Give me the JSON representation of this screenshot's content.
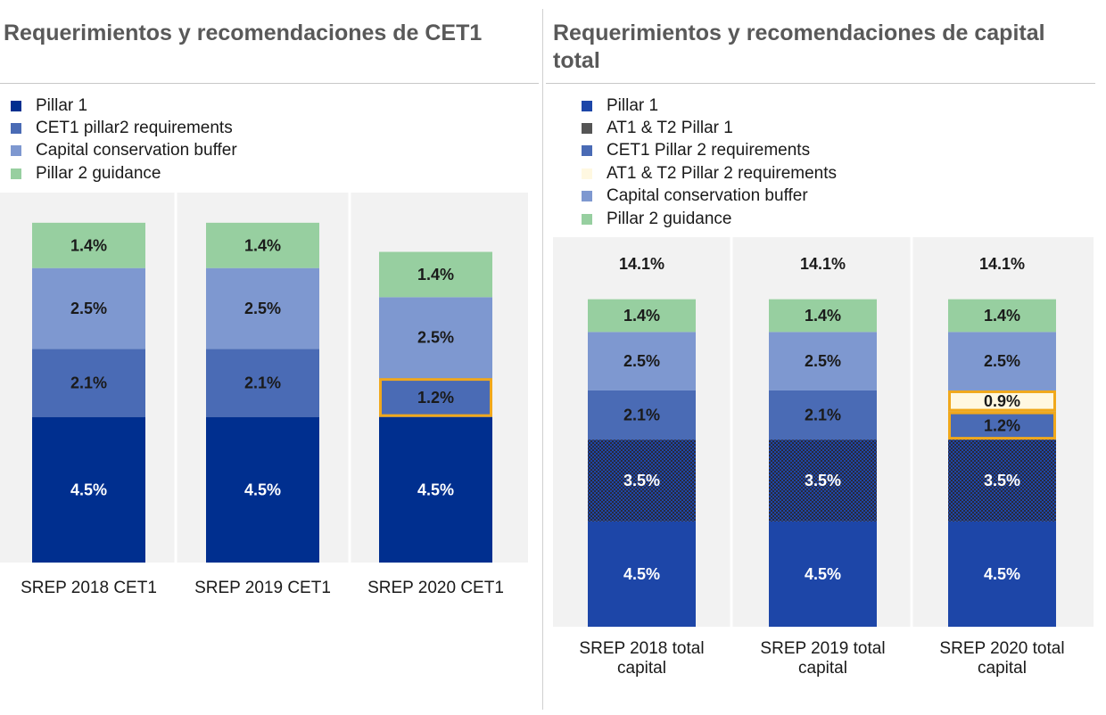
{
  "titles": {
    "left": "Requerimientos y recomendaciones de CET1",
    "right": "Requerimientos y recomendaciones de capital total"
  },
  "legend_left": [
    {
      "label": "Pillar 1",
      "color": "#002f8f"
    },
    {
      "label": "CET1 pillar2 requirements",
      "color": "#4a6bb5"
    },
    {
      "label": "Capital conservation buffer",
      "color": "#7e98d0"
    },
    {
      "label": "Pillar 2 guidance",
      "color": "#97cfa0"
    }
  ],
  "legend_right": [
    {
      "label": "Pillar 1",
      "color": "#1d46a8"
    },
    {
      "label": "AT1 & T2 Pillar 1",
      "color": "#555555"
    },
    {
      "label": "CET1 Pillar 2 requirements",
      "color": "#4a6bb5"
    },
    {
      "label": "AT1 & T2 Pillar 2 requirements",
      "color": "#fff8e1"
    },
    {
      "label": "Capital conservation buffer",
      "color": "#7e98d0"
    },
    {
      "label": "Pillar 2 guidance",
      "color": "#97cfa0"
    }
  ],
  "chart_data": [
    {
      "type": "bar",
      "stacked": true,
      "title": "Requerimientos y recomendaciones de CET1",
      "categories": [
        "SREP 2018 CET1",
        "SREP 2019 CET1",
        "SREP 2020 CET1"
      ],
      "series": [
        {
          "name": "Pillar 1",
          "values": [
            4.5,
            4.5,
            4.5
          ],
          "labels": [
            "4.5%",
            "4.5%",
            "4.5%"
          ],
          "color": "#002f8f",
          "label_color": "#ffffff"
        },
        {
          "name": "CET1 pillar2 requirements",
          "values": [
            2.1,
            2.1,
            1.2
          ],
          "labels": [
            "2.1%",
            "2.1%",
            "1.2%"
          ],
          "color": "#4a6bb5",
          "label_color": "#1a1a1a"
        },
        {
          "name": "Capital conservation buffer",
          "values": [
            2.5,
            2.5,
            2.5
          ],
          "labels": [
            "2.5%",
            "2.5%",
            "2.5%"
          ],
          "color": "#7e98d0",
          "label_color": "#1a1a1a"
        },
        {
          "name": "Pillar 2 guidance",
          "values": [
            1.4,
            1.4,
            1.4
          ],
          "labels": [
            "1.4%",
            "1.4%",
            "1.4%"
          ],
          "color": "#97cfa0",
          "label_color": "#1a1a1a"
        }
      ],
      "highlighted": [
        {
          "category": 2,
          "series": 1,
          "color": "#f0a81c"
        }
      ],
      "grid": false,
      "legend_position": "top-left"
    },
    {
      "type": "bar",
      "stacked": true,
      "title": "Requerimientos y recomendaciones de capital total",
      "categories": [
        "SREP 2018 total capital",
        "SREP 2019 total capital",
        "SREP 2020 total capital"
      ],
      "totals": [
        "14.1%",
        "14.1%",
        "14.1%"
      ],
      "series": [
        {
          "name": "Pillar 1",
          "values": [
            4.5,
            4.5,
            4.5
          ],
          "labels": [
            "4.5%",
            "4.5%",
            "4.5%"
          ],
          "color": "#1d46a8",
          "label_color": "#ffffff"
        },
        {
          "name": "AT1 & T2 Pillar 1",
          "values": [
            3.5,
            3.5,
            3.5
          ],
          "labels": [
            "3.5%",
            "3.5%",
            "3.5%"
          ],
          "color": "#1d46a8",
          "pattern": "dots",
          "label_color": "#ffffff"
        },
        {
          "name": "CET1 Pillar 2 requirements",
          "values": [
            2.1,
            2.1,
            1.2
          ],
          "labels": [
            "2.1%",
            "2.1%",
            "1.2%"
          ],
          "color": "#4a6bb5",
          "label_color": "#1a1a1a"
        },
        {
          "name": "AT1 & T2 Pillar 2 requirements",
          "values": [
            0,
            0,
            0.9
          ],
          "labels": [
            "",
            "",
            "0.9%"
          ],
          "color": "#fff8e1",
          "label_color": "#1a1a1a"
        },
        {
          "name": "Capital conservation buffer",
          "values": [
            2.5,
            2.5,
            2.5
          ],
          "labels": [
            "2.5%",
            "2.5%",
            "2.5%"
          ],
          "color": "#7e98d0",
          "label_color": "#1a1a1a"
        },
        {
          "name": "Pillar 2 guidance",
          "values": [
            1.4,
            1.4,
            1.4
          ],
          "labels": [
            "1.4%",
            "1.4%",
            "1.4%"
          ],
          "color": "#97cfa0",
          "label_color": "#1a1a1a"
        }
      ],
      "highlighted": [
        {
          "category": 2,
          "series": 2,
          "color": "#f0a81c"
        },
        {
          "category": 2,
          "series": 3,
          "color": "#f0a81c"
        }
      ],
      "grid": false,
      "legend_position": "top-left"
    }
  ]
}
